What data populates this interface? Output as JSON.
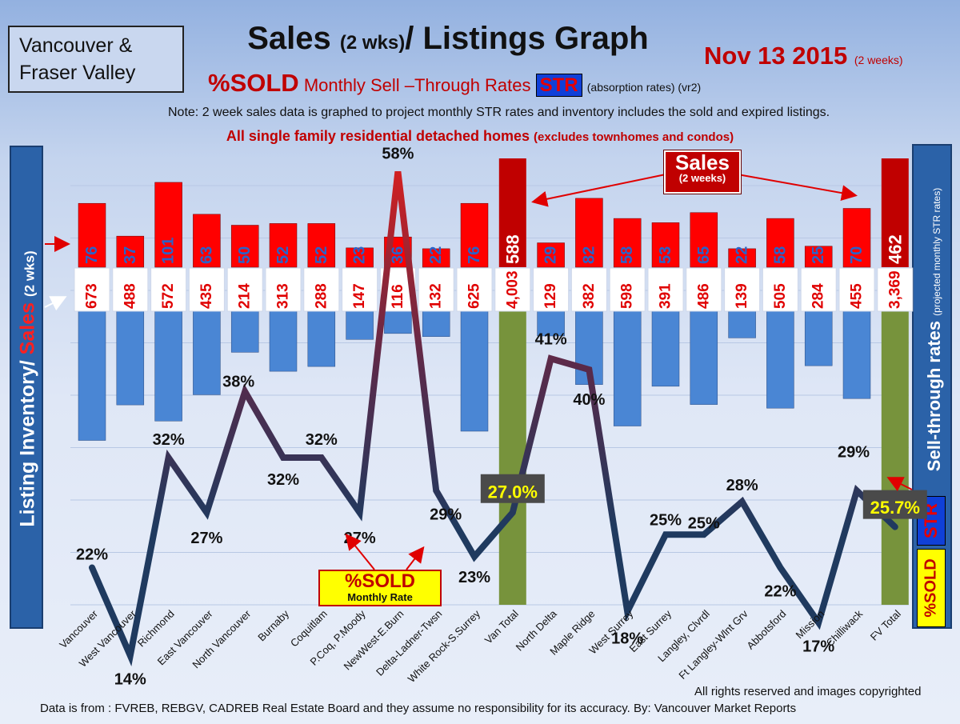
{
  "header": {
    "region": "Vancouver & Fraser Valley",
    "title_main": "Sales",
    "title_small": "(2 wks)",
    "title_rest": "/ Listings Graph",
    "date": "Nov 13 2015",
    "date_note": "(2 weeks)",
    "subtitle_sold": "%SOLD",
    "subtitle_rest": "Monthly Sell –Through Rates",
    "subtitle_str": "STR",
    "subtitle_note": "(absorption rates) (vr2)",
    "note": "Note: 2 week sales data is graphed to project monthly STR rates and inventory includes the sold and expired listings.",
    "homes": "All single family residential detached homes",
    "homes_note": "(excludes townhomes and condos)"
  },
  "side": {
    "left_a": "Listing Inventory/",
    "left_b": "Sales",
    "left_c": "(2 wks)",
    "right_a": "Sell-through rates",
    "right_b": "(projected monthly STR rates)",
    "str": "STR",
    "sold": "%SOLD"
  },
  "callouts": {
    "sales": "Sales",
    "sales_sub": "(2 weeks)",
    "sold": "%SOLD",
    "sold_sub": "Monthly Rate"
  },
  "footer": {
    "copyright": "All rights reserved and images copyrighted",
    "source": "Data is from : FVREB, REBGV, CADREB Real Estate Board and they assume no responsibility for its accuracy. By: Vancouver Market Reports"
  },
  "colors": {
    "sales_bar": "#ff0000",
    "sales_total": "#c00000",
    "listing_bar": "#4a86d4",
    "total_bar": "#77933c",
    "line_low": "#1f3a5f",
    "line_high": "#d42020"
  },
  "chart_data": {
    "type": "bar",
    "categories": [
      "Vancouver",
      "West Vancouver",
      "Richmond",
      "East Vancouver",
      "North Vancouver",
      "Burnaby",
      "Coquitlam",
      "P.Coq, P.Moody",
      "NewWest-E.Burn",
      "Delta-Ladner-Twsn",
      "White Rock-S.Surrey",
      "Van Total",
      "North Delta",
      "Maple Ridge",
      "West Surrey",
      "East Surrey",
      "Langley, Clvrdl",
      "Ft Langley-Wlnt Grv",
      "Abbotsford",
      "Mission",
      "Chilliwack",
      "FV Total"
    ],
    "series": [
      {
        "name": "Sales",
        "values": [
          76,
          37,
          101,
          63,
          50,
          52,
          52,
          23,
          36,
          22,
          76,
          588,
          29,
          82,
          58,
          53,
          65,
          22,
          58,
          25,
          70,
          462
        ]
      },
      {
        "name": "Listing Inventory",
        "values": [
          673,
          488,
          572,
          435,
          214,
          313,
          288,
          147,
          116,
          132,
          625,
          4003,
          129,
          382,
          598,
          391,
          486,
          139,
          505,
          284,
          455,
          3369
        ]
      },
      {
        "name": "%SOLD",
        "values": [
          22,
          14,
          32,
          27,
          38,
          32,
          32,
          27,
          58,
          29,
          23,
          27.0,
          41,
          40,
          18,
          25,
          25,
          28,
          22,
          17,
          29,
          25.7
        ]
      }
    ],
    "sales_labels": [
      "76",
      "37",
      "101",
      "63",
      "50",
      "52",
      "52",
      "23",
      "36",
      "22",
      "76",
      "588",
      "29",
      "82",
      "58",
      "53",
      "65",
      "22",
      "58",
      "25",
      "70",
      "462"
    ],
    "listing_labels": [
      "673",
      "488",
      "572",
      "435",
      "214",
      "313",
      "288",
      "147",
      "116",
      "132",
      "625",
      "4,003",
      "129",
      "382",
      "598",
      "391",
      "486",
      "139",
      "505",
      "284",
      "455",
      "3,369"
    ],
    "pct_labels": [
      "22%",
      "14%",
      "32%",
      "27%",
      "38%",
      "32%",
      "32%",
      "27%",
      "58%",
      "29%",
      "23%",
      "27.0%",
      "41%",
      "40%",
      "18%",
      "25%",
      "25%",
      "28%",
      "22%",
      "17%",
      "29%",
      "25.7%"
    ],
    "totals": [
      "Van Total",
      "FV Total"
    ],
    "grid": true,
    "legend": "none"
  }
}
